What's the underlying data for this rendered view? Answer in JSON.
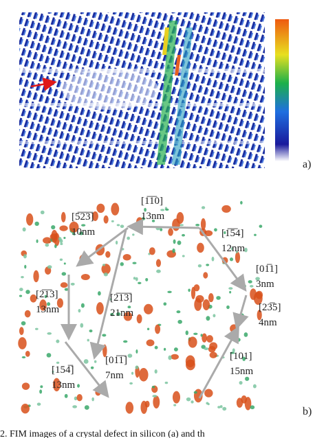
{
  "figure": {
    "panel_a": {
      "label": "a)"
    },
    "panel_b": {
      "label": "b)",
      "annotations": [
        {
          "direction": "[1̅1̅0]",
          "length": "13nm"
        },
        {
          "direction": "[5̅2̅3̅]",
          "length": "10nm"
        },
        {
          "direction": "[1̅5̅4]",
          "length": "12nm"
        },
        {
          "direction": "[01̅1]",
          "length": "3nm"
        },
        {
          "direction": "[2̅1̅3]",
          "length": "13nm"
        },
        {
          "direction": "[2̅1̅3̅]",
          "length": "21nm"
        },
        {
          "direction": "[23̅5]",
          "length": "4nm"
        },
        {
          "direction": "[101]",
          "length": "15nm"
        },
        {
          "direction": "[01̅1̅]",
          "length": "7nm"
        },
        {
          "direction": "[154̅]",
          "length": "13nm"
        }
      ]
    },
    "caption": "2. FIM images of a crystal defect in silicon (a) and th"
  }
}
